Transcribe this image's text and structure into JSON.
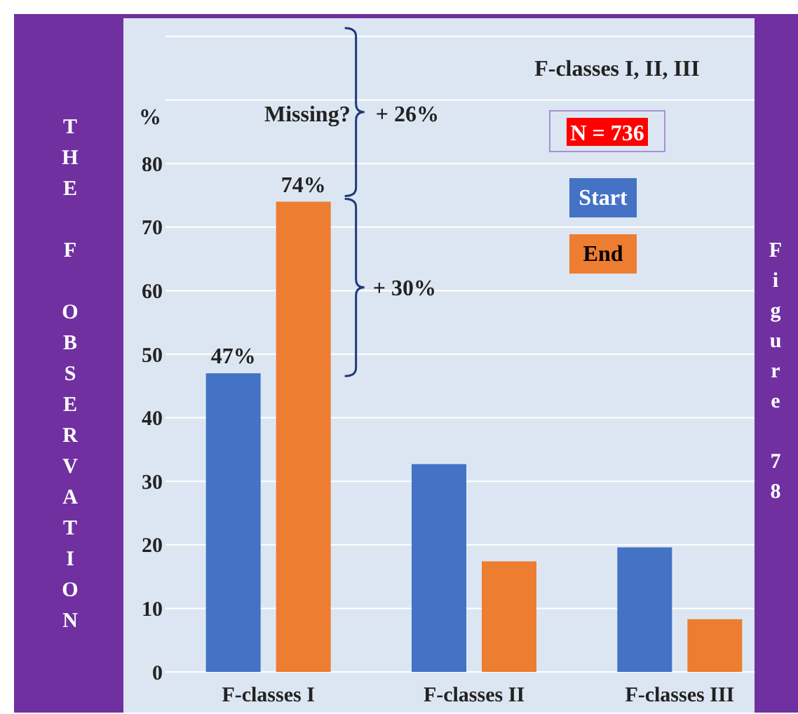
{
  "chart_data": {
    "type": "bar",
    "title": "F-classes I, II, III",
    "ylabel": "%",
    "categories": [
      "F-classes I",
      "F-classes II",
      "F-classes III"
    ],
    "series": [
      {
        "name": "Start",
        "color": "#4472c4",
        "values": [
          47,
          32.7,
          19.6
        ],
        "value_labels": [
          "47%",
          null,
          null
        ]
      },
      {
        "name": "End",
        "color": "#ed7d31",
        "values": [
          74,
          17.4,
          8.3
        ],
        "value_labels": [
          "74%",
          null,
          null
        ]
      }
    ],
    "ylim": [
      0,
      100
    ],
    "yticks": [
      0,
      10,
      20,
      30,
      40,
      50,
      60,
      70,
      80,
      {
        "value": 90,
        "label": null
      },
      {
        "value": 100,
        "label": null
      }
    ],
    "grid": "y",
    "legend": "top right",
    "annotations": [
      "N = 736",
      "Missing?",
      "+ 26%",
      "+ 30%",
      "THE F OBSERVATION",
      "Figure 78"
    ]
  }
}
